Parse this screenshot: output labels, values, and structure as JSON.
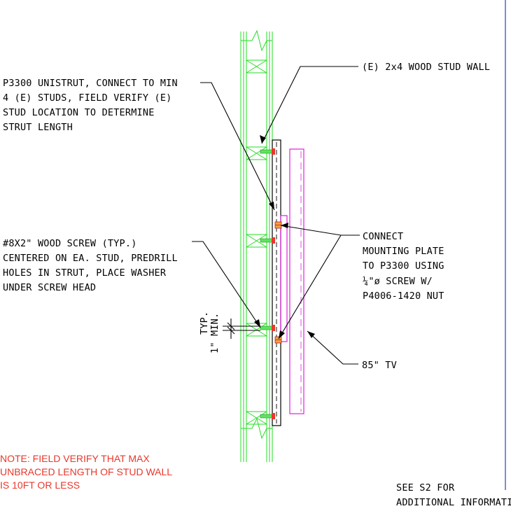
{
  "notes": {
    "stud_wall": "(E) 2x4 WOOD STUD WALL",
    "unistrut": [
      "P3300 UNISTRUT, CONNECT TO MIN",
      "4 (E) STUDS, FIELD VERIFY (E)",
      "STUD LOCATION TO DETERMINE",
      "STRUT LENGTH"
    ],
    "wood_screw": [
      "#8X2\" WOOD SCREW (TYP.)",
      "CENTERED ON EA. STUD, PREDRILL",
      "HOLES IN STRUT, PLACE WASHER",
      "UNDER SCREW HEAD"
    ],
    "connect": [
      "CONNECT",
      "MOUNTING PLATE",
      "TO P3300  USING",
      "¼\"ø SCREW W/",
      "P4006-1420 NUT"
    ],
    "tv": "85\" TV",
    "min_dim": [
      "1\" MIN.",
      "TYP."
    ],
    "field_note": [
      "NOTE: FIELD VERIFY THAT MAX",
      "UNBRACED LENGTH OF STUD WALL",
      "IS 10FT OR LESS"
    ],
    "see_ref": [
      "SEE S2 FOR",
      "ADDITIONAL INFORMATION"
    ]
  },
  "colors": {
    "stud_wall": "#22dd22",
    "tv_outline": "#e020e0",
    "screw": "#e8372b",
    "note_text": "#e8372b",
    "border": "#2b3fb8"
  }
}
